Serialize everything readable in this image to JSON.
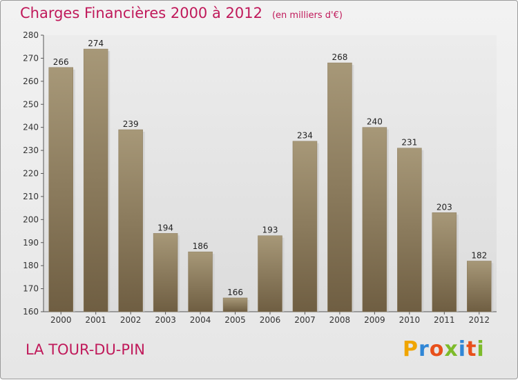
{
  "header": {
    "title": "Charges Financières 2000 à 2012",
    "subtitle": "(en milliers d'€)"
  },
  "footer": {
    "commune": "LA TOUR-DU-PIN",
    "logo_text": "Proxiti"
  },
  "colors": {
    "title": "#c0195a",
    "bar_top": "#a79878",
    "bar_bottom": "#6f5e42",
    "background": "#ebebeb"
  },
  "chart_data": {
    "type": "bar",
    "title": "Charges Financières 2000 à 2012",
    "subtitle": "(en milliers d'€)",
    "xlabel": "",
    "ylabel": "",
    "categories": [
      "2000",
      "2001",
      "2002",
      "2003",
      "2004",
      "2005",
      "2006",
      "2007",
      "2008",
      "2009",
      "2010",
      "2011",
      "2012"
    ],
    "values": [
      266,
      274,
      239,
      194,
      186,
      166,
      193,
      234,
      268,
      240,
      231,
      203,
      182
    ],
    "ylim": [
      160,
      280
    ],
    "yticks": [
      160,
      170,
      180,
      190,
      200,
      210,
      220,
      230,
      240,
      250,
      260,
      270,
      280
    ],
    "grid": false,
    "data_labels": true
  }
}
